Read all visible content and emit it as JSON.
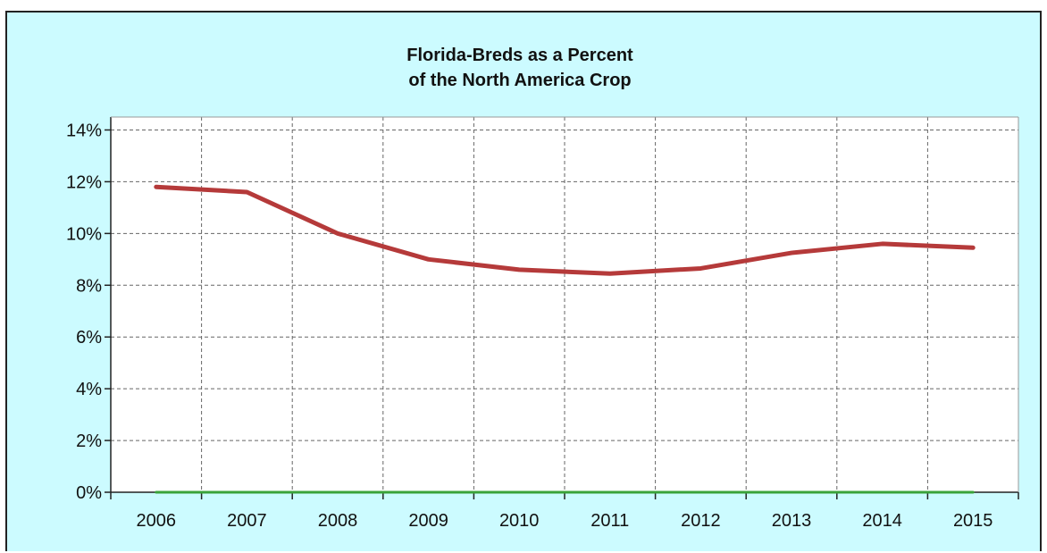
{
  "chart_data": {
    "type": "line",
    "title_lines": [
      "Florida-Breds as a Percent",
      "of the North America Crop"
    ],
    "xlabel": "",
    "ylabel": "",
    "categories": [
      "2006",
      "2007",
      "2008",
      "2009",
      "2010",
      "2011",
      "2012",
      "2013",
      "2014",
      "2015"
    ],
    "y_ticks": [
      "0%",
      "2%",
      "4%",
      "6%",
      "8%",
      "10%",
      "12%",
      "14%"
    ],
    "ylim": [
      0,
      14.5
    ],
    "grid": true,
    "series": [
      {
        "color": "#b53a3a",
        "values": [
          11.8,
          11.6,
          10.0,
          9.0,
          8.6,
          8.45,
          8.65,
          9.25,
          9.6,
          9.45
        ]
      },
      {
        "color": "#3aa33a",
        "values": [
          0,
          0,
          0,
          0,
          0,
          0,
          0,
          0,
          0,
          0
        ]
      }
    ],
    "background": "#ccfbff",
    "plot_background": "#ffffff"
  }
}
